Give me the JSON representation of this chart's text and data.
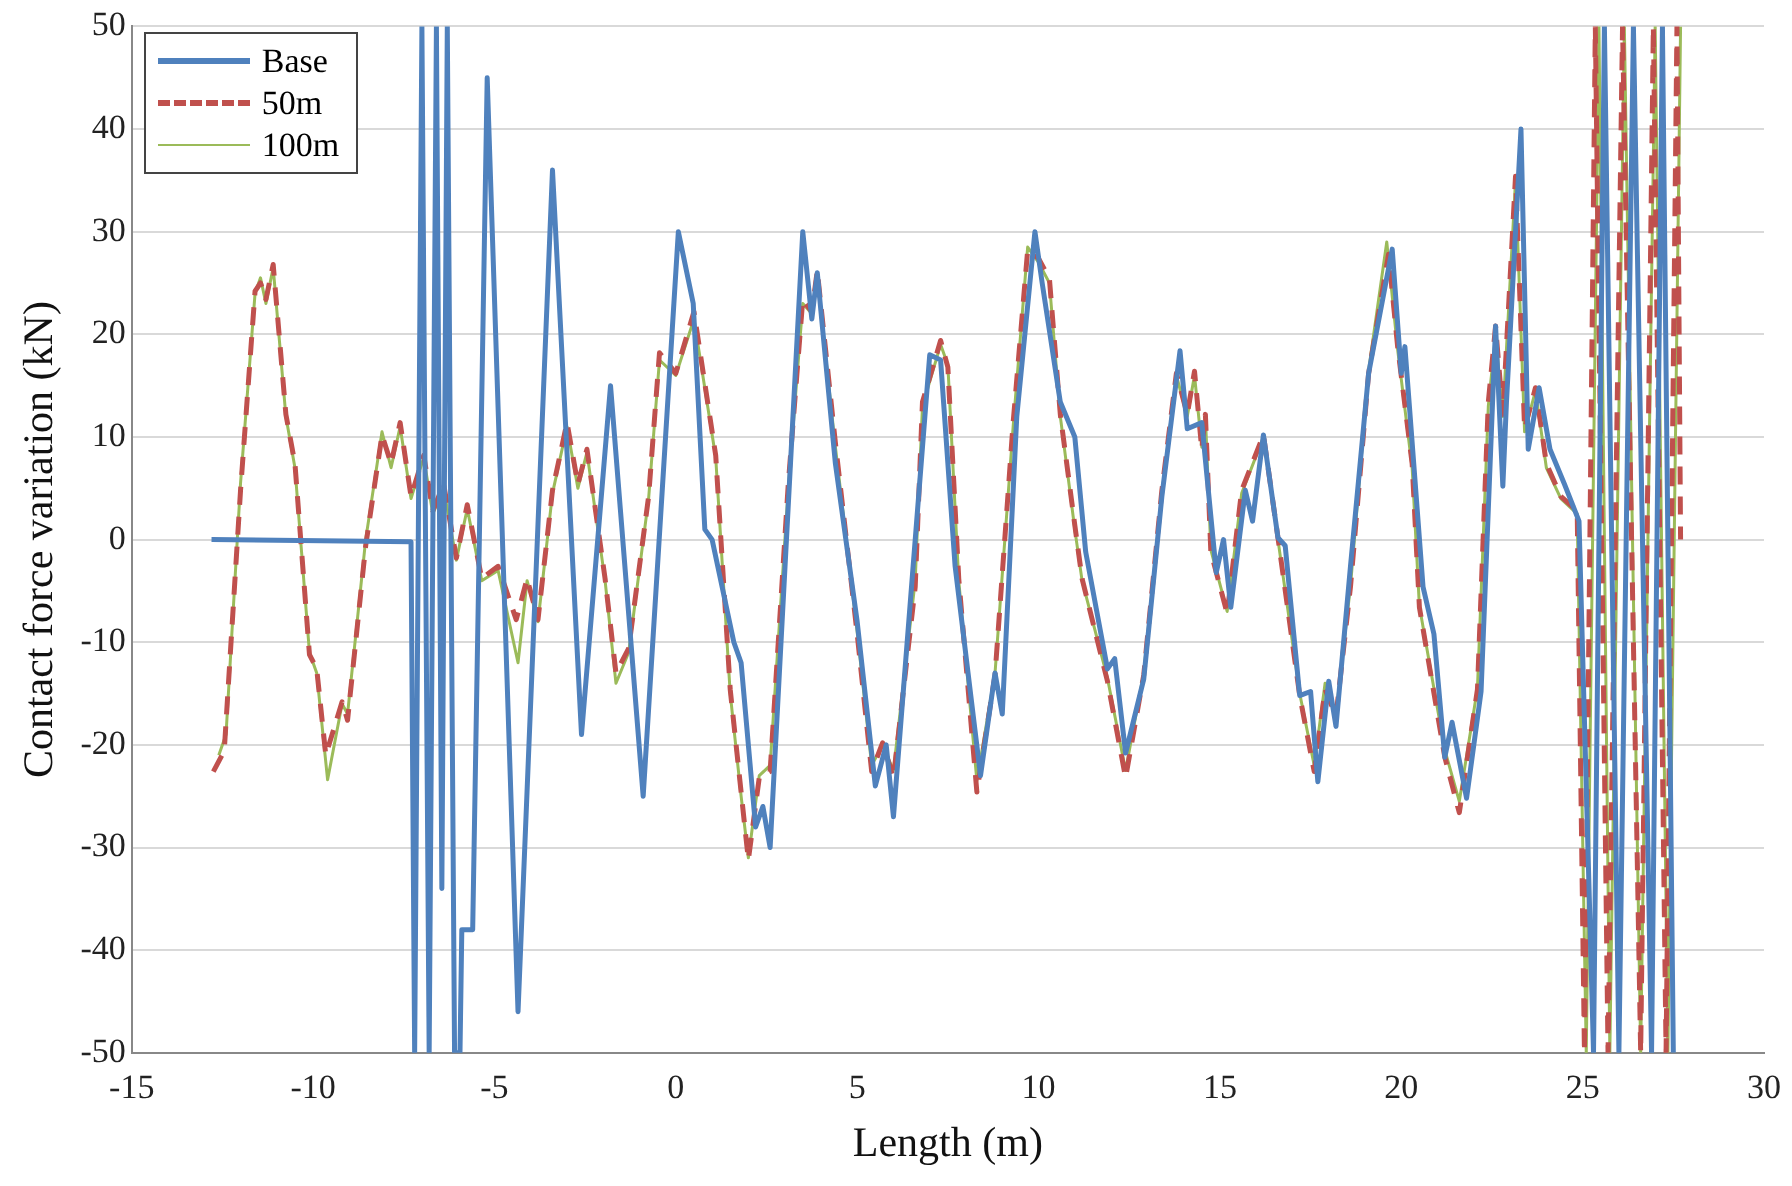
{
  "chart_data": {
    "type": "line",
    "xlabel": "Length (m)",
    "ylabel": "Contact force variation (kN)",
    "xlim": [
      -15,
      30
    ],
    "xticks": [
      -15,
      -10,
      -5,
      0,
      5,
      10,
      15,
      20,
      25,
      30
    ],
    "ylim": [
      -50,
      50
    ],
    "yticks": [
      -50,
      -40,
      -30,
      -20,
      -10,
      0,
      10,
      20,
      30,
      40,
      50
    ],
    "grid": "y",
    "legend": "top left",
    "marker": "none",
    "series": [
      {
        "name": "Base",
        "color": "#4f81bd",
        "line_style": "solid",
        "x": [
          -12.8,
          -7.3,
          -7.2,
          -7.0,
          -6.8,
          -6.6,
          -6.45,
          -6.3,
          -6.1,
          -5.95,
          -5.9,
          -5.6,
          -5.2,
          -4.35,
          -3.4,
          -2.6,
          -1.8,
          -0.9,
          0.07,
          0.48,
          0.8,
          1.0,
          1.6,
          1.8,
          2.2,
          2.4,
          2.6,
          3.5,
          3.75,
          3.9,
          4.4,
          5.0,
          5.5,
          5.8,
          6.0,
          7.0,
          7.3,
          7.7,
          8.4,
          8.8,
          9.0,
          9.4,
          9.9,
          10.1,
          10.6,
          11.0,
          11.3,
          11.9,
          12.1,
          12.4,
          12.9,
          13.4,
          13.9,
          14.1,
          14.5,
          14.9,
          15.1,
          15.3,
          15.7,
          15.9,
          16.2,
          16.6,
          16.8,
          17.2,
          17.5,
          17.7,
          18.0,
          18.2,
          18.6,
          19.1,
          19.75,
          20.0,
          20.1,
          20.6,
          20.9,
          21.2,
          21.4,
          21.8,
          22.2,
          22.6,
          22.8,
          22.9,
          23.3,
          23.5,
          23.8,
          24.1,
          24.5,
          24.9,
          25.3,
          25.6,
          26.0,
          26.4,
          26.9,
          27.2,
          27.5
        ],
        "values": [
          0,
          -0.2,
          -50,
          50,
          -50,
          50,
          -34,
          50,
          -50,
          -50,
          -38,
          -38,
          45,
          -46,
          36,
          -19,
          15,
          -25,
          30,
          23,
          1,
          0,
          -10,
          -12,
          -28,
          -26,
          -30,
          30,
          21.5,
          26,
          7.4,
          -8,
          -24,
          -20,
          -27,
          18,
          17.5,
          -2.6,
          -23,
          -13,
          -17,
          12,
          30,
          25,
          13.4,
          10,
          -1.2,
          -12.6,
          -11.6,
          -20.8,
          -13.6,
          4.2,
          18.4,
          10.8,
          11.4,
          -3.2,
          0,
          -6.6,
          4.8,
          1.8,
          10.2,
          0.2,
          -0.6,
          -15.2,
          -14.8,
          -23.6,
          -13.8,
          -18.2,
          -2.6,
          16.2,
          28.3,
          16.2,
          18.8,
          -4.6,
          -9.2,
          -21.2,
          -17.8,
          -25.2,
          -14.8,
          20.8,
          5.2,
          13.4,
          40,
          8.8,
          14.8,
          8.8,
          5.4,
          1.8,
          -50,
          50,
          -50,
          50,
          -50,
          50,
          -50
        ]
      },
      {
        "name": "50m",
        "color": "#c0504d",
        "line_style": "dashed",
        "x": [
          -12.75,
          -12.45,
          -12.0,
          -11.6,
          -11.45,
          -11.3,
          -11.1,
          -10.75,
          -10.5,
          -10.1,
          -9.9,
          -9.65,
          -9.2,
          -9.05,
          -8.55,
          -8.1,
          -7.85,
          -7.6,
          -7.3,
          -6.95,
          -6.7,
          -6.4,
          -6.05,
          -5.75,
          -5.35,
          -4.9,
          -4.4,
          -4.1,
          -3.8,
          -3.4,
          -3.0,
          -2.7,
          -2.45,
          -1.95,
          -1.65,
          -1.3,
          -0.75,
          -0.45,
          0.0,
          0.5,
          1.1,
          1.5,
          1.8,
          2.0,
          2.3,
          2.6,
          3.1,
          3.5,
          3.75,
          3.9,
          4.4,
          5.0,
          5.4,
          5.7,
          6.0,
          6.6,
          6.8,
          7.3,
          7.5,
          7.8,
          8.3,
          8.8,
          9.3,
          9.7,
          10.0,
          10.3,
          10.6,
          11.0,
          11.2,
          11.9,
          12.4,
          12.9,
          13.4,
          13.8,
          14.1,
          14.3,
          14.5,
          14.6,
          14.75,
          15.2,
          15.6,
          16.2,
          16.6,
          17.2,
          17.6,
          17.9,
          18.2,
          18.6,
          19.1,
          19.65,
          19.9,
          20.3,
          20.5,
          21.2,
          21.6,
          22.1,
          22.4,
          22.6,
          22.8,
          23.15,
          23.4,
          23.7,
          24.0,
          24.4,
          24.85,
          25.05,
          25.35,
          25.7,
          26.1,
          26.6,
          26.95,
          27.3,
          27.6,
          27.7
        ],
        "values": [
          -22.6,
          -20.6,
          4.8,
          24.2,
          25,
          23.4,
          26.8,
          12.2,
          7.4,
          -11.2,
          -12.6,
          -21,
          -15.8,
          -17.6,
          -0.6,
          10.2,
          7.4,
          11.4,
          4.2,
          8.2,
          2.8,
          5.4,
          -1.8,
          3.4,
          -3.8,
          -2.6,
          -7.8,
          -3.8,
          -7.8,
          4.8,
          11.4,
          5.4,
          8.8,
          -3.8,
          -13,
          -10.6,
          4.2,
          18.2,
          16.2,
          22.2,
          8.2,
          -14.6,
          -24.6,
          -31.2,
          -23.2,
          -22.6,
          5.4,
          23.4,
          22.2,
          26.2,
          9.4,
          -9.2,
          -22.6,
          -19.8,
          -23.2,
          -4.6,
          13.4,
          19.4,
          16.8,
          -3.8,
          -24.6,
          -13.2,
          11.4,
          28.2,
          27.4,
          25.4,
          12.2,
          1.4,
          -3.8,
          -13.8,
          -23.2,
          -13.2,
          4.8,
          16.2,
          12.2,
          16.4,
          8.8,
          12.2,
          -1.2,
          -7.2,
          4.8,
          10.2,
          0.2,
          -15.2,
          -22.6,
          -14.6,
          -17.2,
          -4.6,
          16.2,
          27.8,
          18.8,
          7.4,
          -6.6,
          -21.2,
          -26.6,
          -14.6,
          13.4,
          20.8,
          12.2,
          35.4,
          10.8,
          14.8,
          7.4,
          4.2,
          2.8,
          -50,
          50,
          -50,
          50,
          -50,
          50,
          -50,
          50,
          0
        ]
      },
      {
        "name": "100m",
        "color": "#9bbb59",
        "line_style": "solid",
        "x": [
          -12.6,
          -12.4,
          -12.0,
          -11.6,
          -11.45,
          -11.3,
          -11.1,
          -10.75,
          -10.5,
          -10.1,
          -9.9,
          -9.6,
          -9.2,
          -9.05,
          -8.55,
          -8.1,
          -7.85,
          -7.6,
          -7.3,
          -6.95,
          -6.7,
          -6.4,
          -6.05,
          -5.75,
          -5.35,
          -4.9,
          -4.35,
          -4.1,
          -3.8,
          -3.4,
          -3.0,
          -2.7,
          -2.45,
          -1.95,
          -1.65,
          -1.3,
          -0.75,
          -0.45,
          0.0,
          0.5,
          1.1,
          1.5,
          1.8,
          2.0,
          2.3,
          2.6,
          3.1,
          3.5,
          3.75,
          3.9,
          4.4,
          5.0,
          5.4,
          5.7,
          6.0,
          6.6,
          6.8,
          7.3,
          7.5,
          7.8,
          8.3,
          8.8,
          9.3,
          9.7,
          10.0,
          10.3,
          10.6,
          11.0,
          11.2,
          11.9,
          12.4,
          12.9,
          13.4,
          13.8,
          14.1,
          14.3,
          14.5,
          14.6,
          14.75,
          15.2,
          15.6,
          16.2,
          16.6,
          17.2,
          17.6,
          17.9,
          18.2,
          18.6,
          19.1,
          19.6,
          19.9,
          20.3,
          20.5,
          21.2,
          21.6,
          22.1,
          22.4,
          22.6,
          22.8,
          23.15,
          23.4,
          23.7,
          24.0,
          24.4,
          24.85,
          25.1,
          25.45,
          25.75,
          26.15,
          26.6,
          27.0,
          27.35,
          27.7
        ],
        "values": [
          -21,
          -19,
          5.5,
          24,
          25.5,
          23,
          26.5,
          12,
          7,
          -11,
          -13,
          -23.4,
          -16,
          -17,
          0,
          10.5,
          7,
          11,
          4,
          8,
          2.5,
          5,
          -2,
          3,
          -4,
          -3,
          -12,
          -4,
          -8,
          4.5,
          11,
          5,
          8.5,
          -4,
          -14,
          -11,
          4,
          17.5,
          16,
          21.5,
          8,
          -15,
          -25,
          -31,
          -23,
          -22,
          5,
          23,
          22,
          25.5,
          9,
          -9,
          -22,
          -20,
          -22.5,
          -4,
          13,
          19,
          17,
          -4,
          -23.5,
          -13,
          11,
          28.5,
          27,
          25,
          12,
          1,
          -4,
          -13.5,
          -22.5,
          -13,
          4.5,
          16,
          12,
          16,
          9,
          12,
          -1,
          -7,
          4.5,
          10,
          0,
          -15,
          -22,
          -14,
          -17,
          -4.5,
          16.5,
          29,
          18.5,
          7,
          -6.5,
          -20.5,
          -25.5,
          -14.5,
          13,
          20,
          12,
          35,
          10.5,
          14.5,
          7,
          4,
          2.5,
          -50,
          50,
          -50,
          50,
          -50,
          50,
          -50,
          50
        ]
      }
    ]
  }
}
